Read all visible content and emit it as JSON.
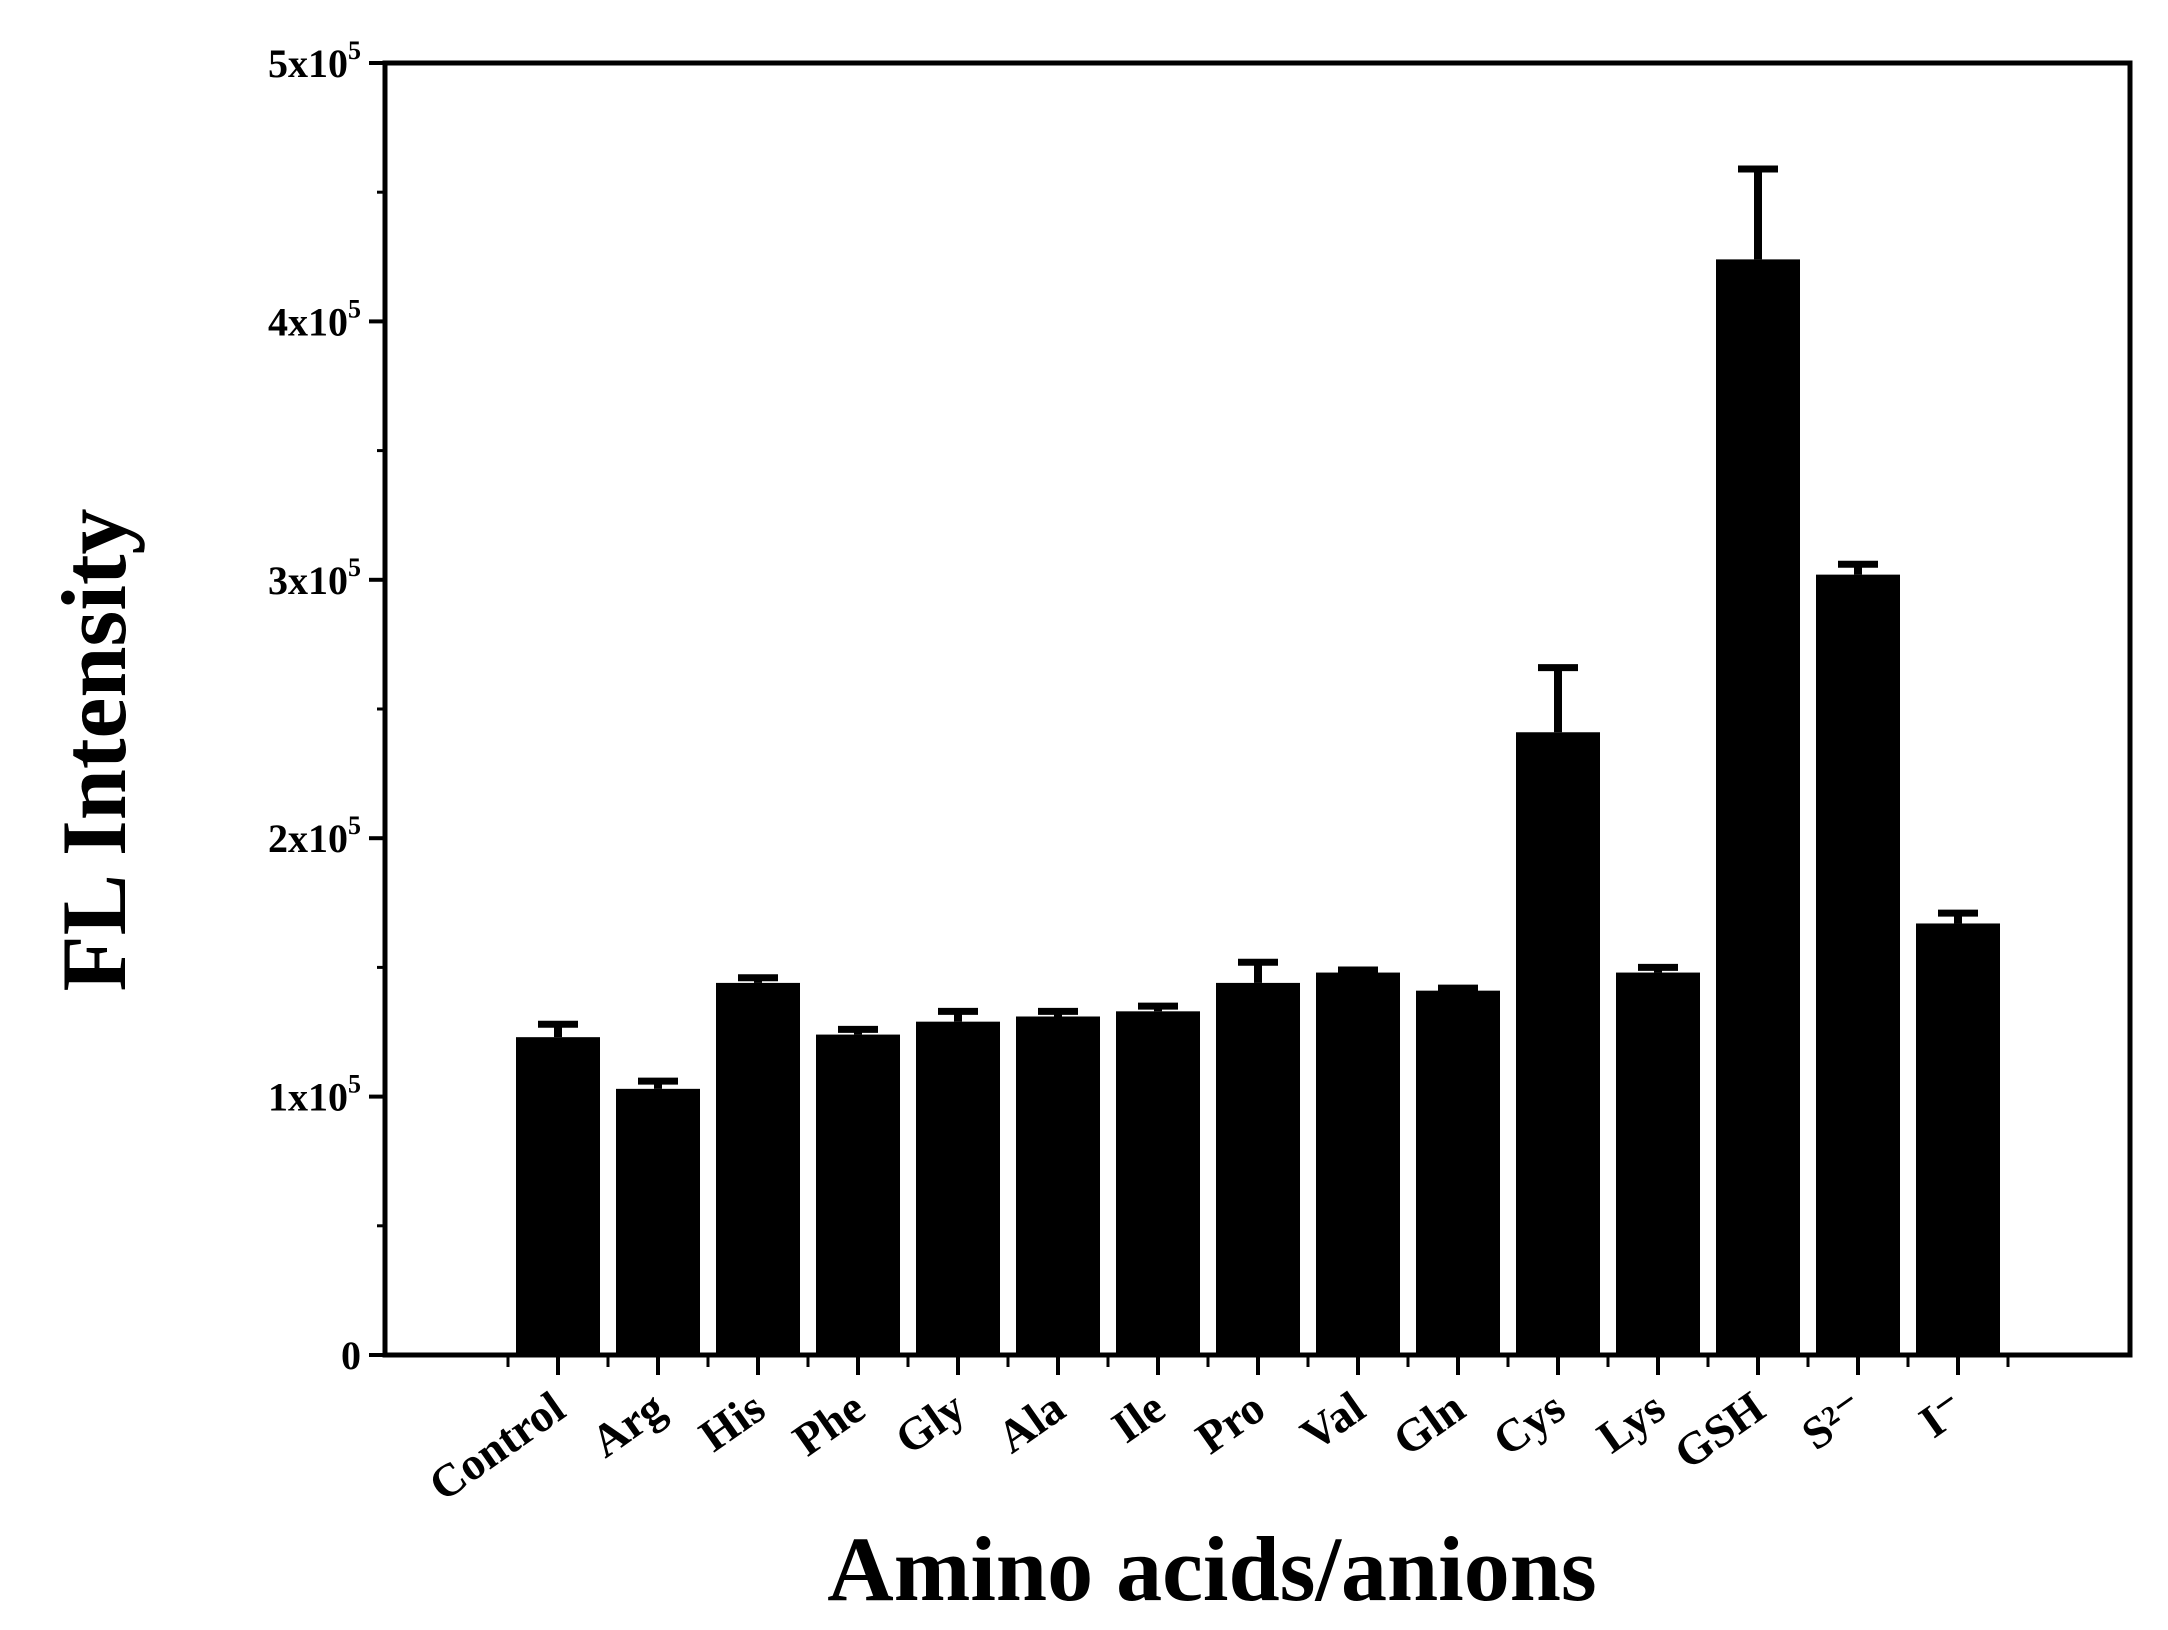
{
  "chart_data": {
    "type": "bar",
    "xlabel": "Amino acids/anions",
    "ylabel": "FL Intensity",
    "ylim": [
      0,
      500000
    ],
    "y_ticks": [
      {
        "value": 0,
        "label": "0"
      },
      {
        "value": 100000,
        "mantissa": "1x10",
        "exp": "5"
      },
      {
        "value": 200000,
        "mantissa": "2x10",
        "exp": "5"
      },
      {
        "value": 300000,
        "mantissa": "3x10",
        "exp": "5"
      },
      {
        "value": 400000,
        "mantissa": "4x10",
        "exp": "5"
      },
      {
        "value": 500000,
        "mantissa": "5x10",
        "exp": "5"
      }
    ],
    "categories": [
      "Control",
      "Arg",
      "His",
      "Phe",
      "Gly",
      "Ala",
      "Ile",
      "Pro",
      "Val",
      "Gln",
      "Cys",
      "Lys",
      "GSH",
      "S²⁻",
      "I⁻"
    ],
    "values": [
      123000,
      103000,
      144000,
      124000,
      129000,
      131000,
      133000,
      144000,
      148000,
      141000,
      241000,
      148000,
      424000,
      302000,
      167000
    ],
    "errors": [
      5000,
      3000,
      2000,
      2000,
      4000,
      2000,
      2000,
      8000,
      1000,
      1000,
      25000,
      2000,
      35000,
      4000,
      4000
    ],
    "bar_color": "#000000",
    "grid": false
  }
}
